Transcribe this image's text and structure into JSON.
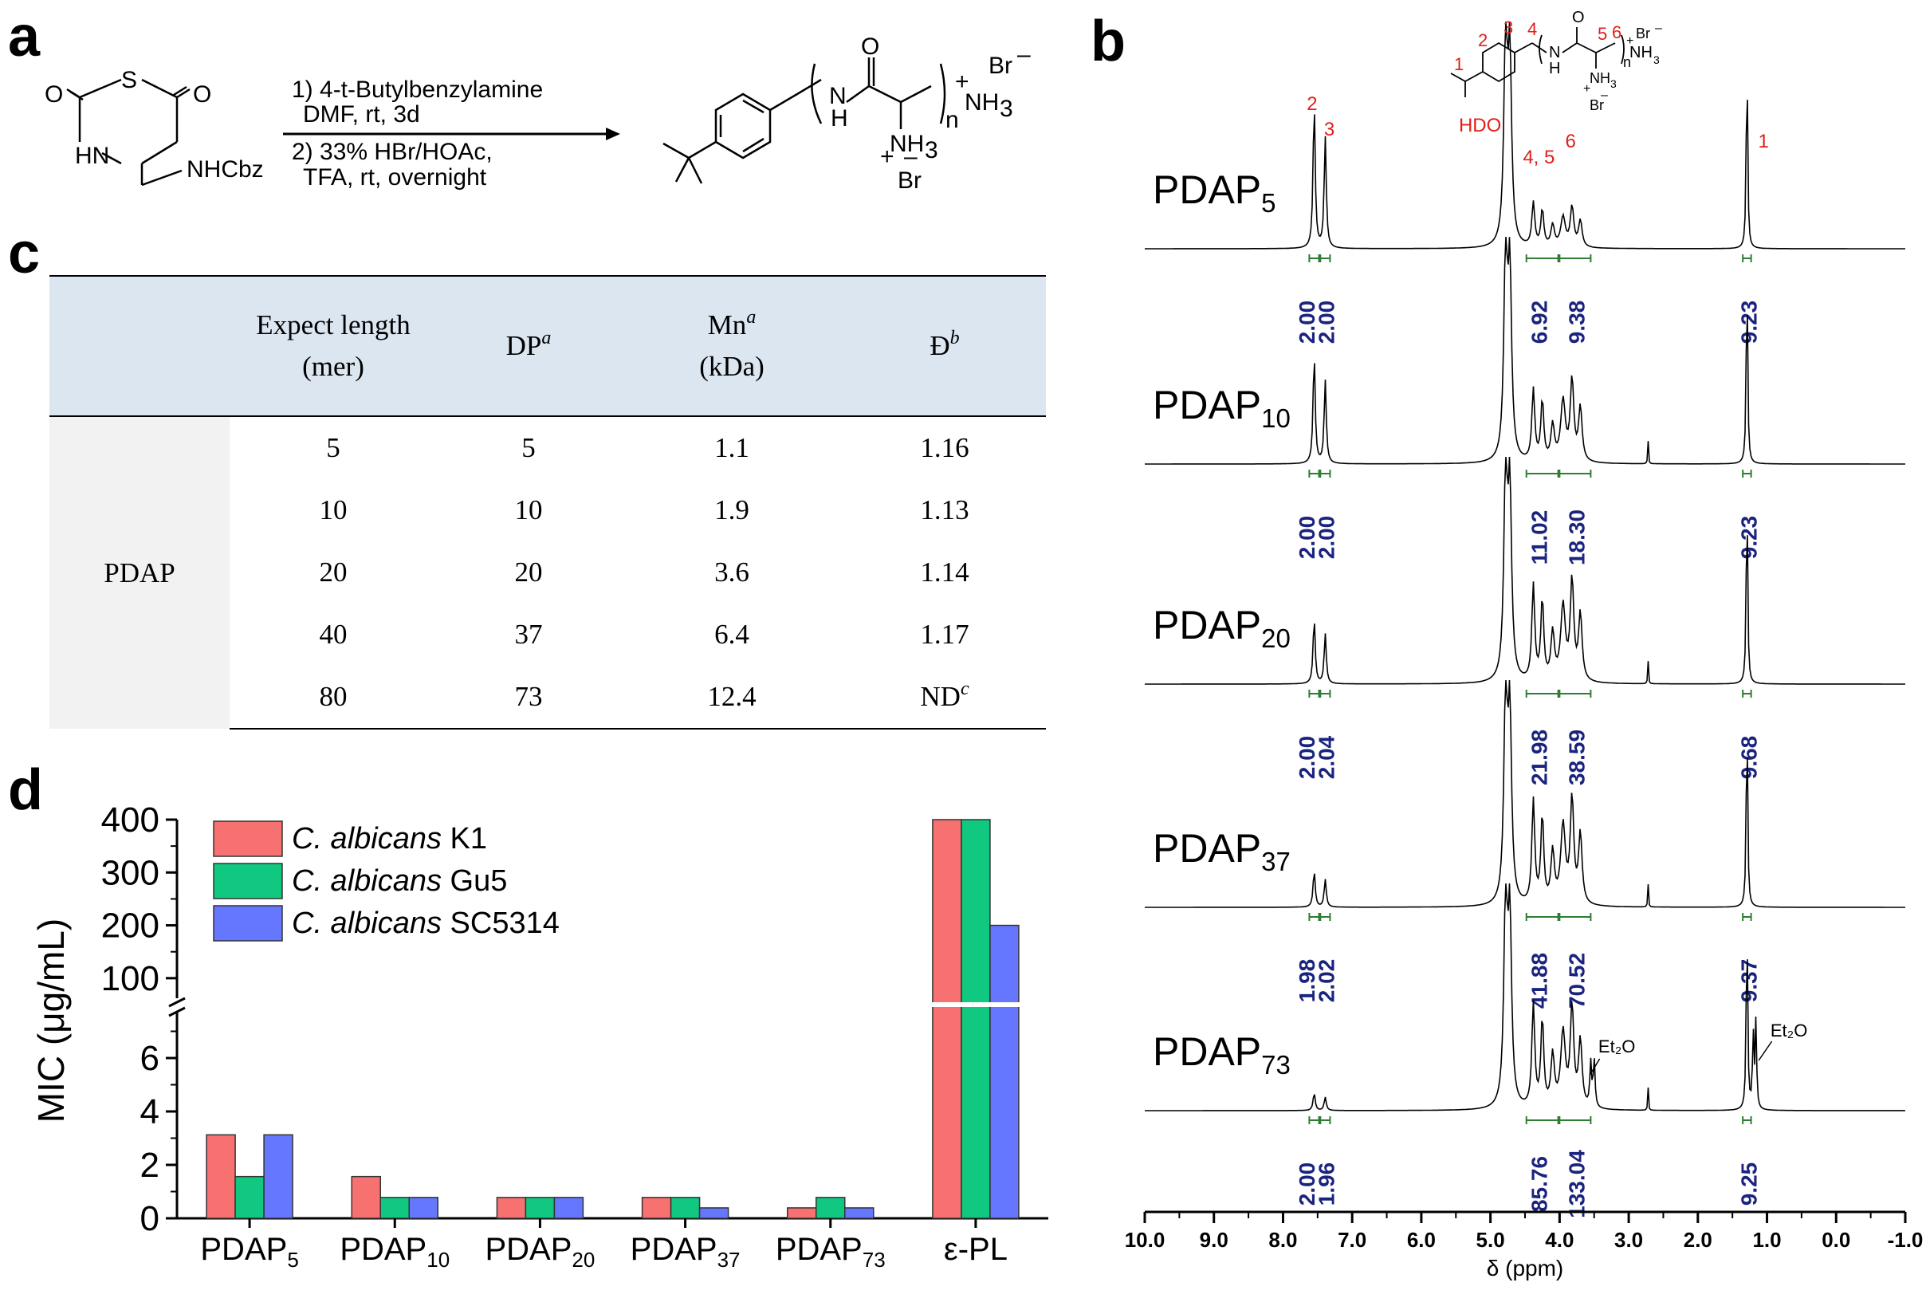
{
  "panels": {
    "a": "a",
    "b": "b",
    "c": "c",
    "d": "d"
  },
  "scheme": {
    "reactant": {
      "S": "S",
      "O_left": "O",
      "O_right": "O",
      "HN": "HN",
      "NHCbz": "NHCbz"
    },
    "conditions": [
      "1) 4-t-Butylbenzylamine",
      "DMF,  rt, 3d",
      "2) 33% HBr/HOAc,",
      "TFA, rt, overnight"
    ],
    "product": {
      "O": "O",
      "NH": "H",
      "N": "N",
      "NH3": "NH",
      "NH3_sub": "3",
      "plus": "+",
      "minus": "–",
      "Br": "Br",
      "n": "n",
      "plus2": "+",
      "NH3_end": "NH",
      "NH3_end_sub": "3",
      "Br2": "Br"
    }
  },
  "table": {
    "headers": [
      {
        "line1": "",
        "line2": ""
      },
      {
        "line1": "Expect length",
        "line2": "(mer)"
      },
      {
        "line1": "DP",
        "sup": "a"
      },
      {
        "line1": "Mn",
        "sup": "a",
        "line2": "(kDa)"
      },
      {
        "line1": "Đ",
        "sup": "b"
      }
    ],
    "group": "PDAP",
    "rows": [
      {
        "expect": "5",
        "dp": "5",
        "mn": "1.1",
        "d": "1.16"
      },
      {
        "expect": "10",
        "dp": "10",
        "mn": "1.9",
        "d": "1.13"
      },
      {
        "expect": "20",
        "dp": "20",
        "mn": "3.6",
        "d": "1.14"
      },
      {
        "expect": "40",
        "dp": "37",
        "mn": "6.4",
        "d": "1.17"
      },
      {
        "expect": "80",
        "dp": "73",
        "mn": "12.4",
        "d": "ND",
        "d_sup": "c"
      }
    ]
  },
  "chart_data": [
    {
      "type": "bar",
      "ylabel": "MIC (μg/mL)",
      "categories": [
        {
          "base": "PDAP",
          "sub": "5"
        },
        {
          "base": "PDAP",
          "sub": "10"
        },
        {
          "base": "PDAP",
          "sub": "20"
        },
        {
          "base": "PDAP",
          "sub": "37"
        },
        {
          "base": "PDAP",
          "sub": "73"
        },
        {
          "base": "ε-PL",
          "sub": ""
        }
      ],
      "series": [
        {
          "name_italic": "C. albicans",
          "name_rest": " K1",
          "color": "#f87171",
          "values": [
            3.125,
            1.5625,
            0.78,
            0.78,
            0.39,
            400
          ]
        },
        {
          "name_italic": "C. albicans",
          "name_rest": " Gu5",
          "color": "#10c880",
          "values": [
            1.5625,
            0.78,
            0.78,
            0.78,
            0.78,
            400
          ]
        },
        {
          "name_italic": "C. albicans",
          "name_rest": " SC5314",
          "color": "#6677ff",
          "values": [
            3.125,
            0.78,
            0.78,
            0.39,
            0.39,
            200
          ]
        }
      ],
      "y_axis_lower": {
        "range": [
          0,
          8
        ],
        "ticks": [
          "0",
          "2",
          "4",
          "6"
        ]
      },
      "y_axis_upper": {
        "range": [
          50,
          400
        ],
        "ticks": [
          "100",
          "200",
          "300",
          "400"
        ]
      },
      "axis_break": true,
      "legend": "top-left"
    },
    {
      "type": "line",
      "xlabel": "δ (ppm)",
      "xlim": [
        10.0,
        -1.0
      ],
      "x_reversed": true,
      "xticks": [
        "10.0",
        "9.0",
        "8.0",
        "7.0",
        "6.0",
        "5.0",
        "4.0",
        "3.0",
        "2.0",
        "1.0",
        "0.0",
        "-1.0"
      ],
      "annotations": {
        "peak_labels": [
          "2",
          "3",
          "HDO",
          "4, 5",
          "6",
          "1"
        ],
        "struct_numbers": [
          "1",
          "2",
          "3",
          "4",
          "5",
          "6"
        ],
        "struct_text": {
          "O": "O",
          "N": "N",
          "H": "H",
          "n": "n",
          "NH3": "NH",
          "NH3_sub": "3",
          "plus": "+",
          "Br": "Br",
          "minus": "–"
        },
        "solvent": "Et₂O"
      },
      "spectra": [
        {
          "base": "PDAP",
          "sub": "5",
          "integrals": [
            "2.00",
            "2.00",
            "6.92",
            "9.38",
            "9.23"
          ],
          "h_ar": 100,
          "h_b": 55,
          "h_c": 42,
          "eth": false
        },
        {
          "base": "PDAP",
          "sub": "10",
          "integrals": [
            "2.00",
            "2.00",
            "11.02",
            "18.30",
            "9.23"
          ],
          "h_ar": 75,
          "h_b": 90,
          "h_c": 85,
          "eth": false
        },
        {
          "base": "PDAP",
          "sub": "20",
          "integrals": [
            "2.00",
            "2.04",
            "21.98",
            "38.59",
            "9.68"
          ],
          "h_ar": 45,
          "h_b": 120,
          "h_c": 105,
          "eth": false
        },
        {
          "base": "PDAP",
          "sub": "37",
          "integrals": [
            "1.98",
            "2.02",
            "41.88",
            "70.52",
            "9.37"
          ],
          "h_ar": 25,
          "h_b": 130,
          "h_c": 110,
          "eth": false
        },
        {
          "base": "PDAP",
          "sub": "73",
          "integrals": [
            "2.00",
            "1.96",
            "85.76",
            "133.04",
            "9.25"
          ],
          "h_ar": 12,
          "h_b": 130,
          "h_c": 105,
          "eth": true
        }
      ]
    }
  ]
}
